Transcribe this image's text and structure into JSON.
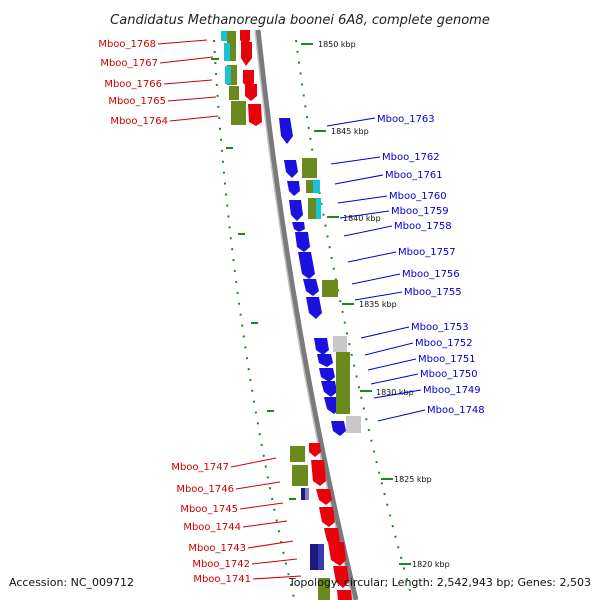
{
  "title": "Candidatus Methanoregula boonei 6A8, complete genome",
  "footer": {
    "accession": "Accession: NC_009712",
    "topology": "Topology: circular; Length: 2,542,943 bp; Genes: 2,503"
  },
  "ticks": [
    {
      "label": "1850 kbp"
    },
    {
      "label": "1845 kbp"
    },
    {
      "label": "1840 kbp"
    },
    {
      "label": "1835 kbp"
    },
    {
      "label": "1830 kbp"
    },
    {
      "label": "1825 kbp"
    },
    {
      "label": "1820 kbp"
    }
  ],
  "genes_left": [
    {
      "name": "Mboo_1768"
    },
    {
      "name": "Mboo_1767"
    },
    {
      "name": "Mboo_1766"
    },
    {
      "name": "Mboo_1765"
    },
    {
      "name": "Mboo_1764"
    },
    {
      "name": "Mboo_1747"
    },
    {
      "name": "Mboo_1746"
    },
    {
      "name": "Mboo_1745"
    },
    {
      "name": "Mboo_1744"
    },
    {
      "name": "Mboo_1743"
    },
    {
      "name": "Mboo_1742"
    },
    {
      "name": "Mboo_1741"
    }
  ],
  "genes_right": [
    {
      "name": "Mboo_1763"
    },
    {
      "name": "Mboo_1762"
    },
    {
      "name": "Mboo_1761"
    },
    {
      "name": "Mboo_1760"
    },
    {
      "name": "Mboo_1759"
    },
    {
      "name": "Mboo_1758"
    },
    {
      "name": "Mboo_1757"
    },
    {
      "name": "Mboo_1756"
    },
    {
      "name": "Mboo_1755"
    },
    {
      "name": "Mboo_1753"
    },
    {
      "name": "Mboo_1752"
    },
    {
      "name": "Mboo_1751"
    },
    {
      "name": "Mboo_1750"
    },
    {
      "name": "Mboo_1749"
    },
    {
      "name": "Mboo_1748"
    }
  ],
  "colors": {
    "forward_gene": "#e8000b",
    "reverse_gene": "#1a10e0",
    "cog_olive": "#6b8a1e",
    "cog_cyan": "#19c2d6",
    "cog_grey": "#c8c8c8",
    "cog_navy": "#1a1a80",
    "backbone": "#8a8a8a",
    "tick_green": "#1a8a1a",
    "left_label": "#cc0000",
    "right_label": "#0000cc"
  }
}
